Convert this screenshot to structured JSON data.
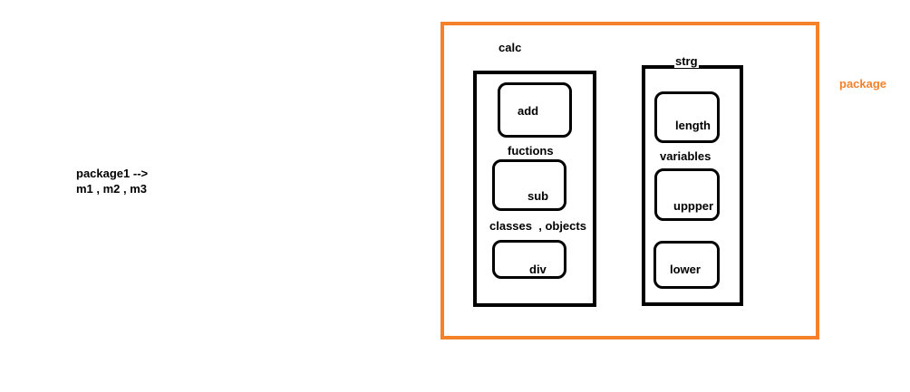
{
  "note": {
    "line1": "package1 -->",
    "line2": "m1 , m2 , m3"
  },
  "package_label": "package",
  "modules": {
    "calc": {
      "title": "calc",
      "functions": [
        "add",
        "sub",
        "div"
      ],
      "notes": [
        "fuctions",
        "classes  , objects"
      ]
    },
    "strg": {
      "title": "strg",
      "functions": [
        "length",
        "uppper",
        "lower"
      ],
      "notes": [
        "variables"
      ]
    }
  },
  "colors": {
    "package_border": "#f5822a",
    "package_label": "#f5822a",
    "module_border": "#000000"
  }
}
